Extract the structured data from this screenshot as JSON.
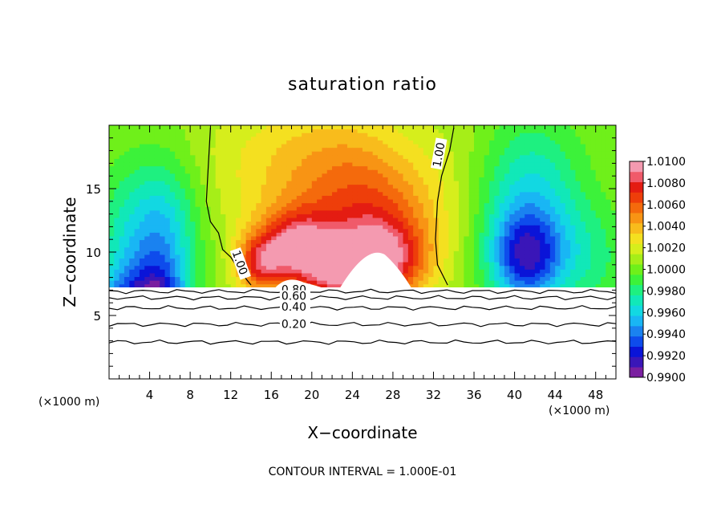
{
  "chart_data": {
    "type": "heatmap",
    "title": "saturation ratio",
    "xlabel": "X−coordinate",
    "ylabel": "Z−coordinate",
    "x_unit_left": "(×1000 m)",
    "x_unit_right": "(×1000 m)",
    "footer": "CONTOUR INTERVAL = 1.000E-01",
    "xlim": [
      0,
      50
    ],
    "ylim": [
      0,
      20
    ],
    "x_ticks": [
      4,
      8,
      12,
      16,
      20,
      24,
      28,
      32,
      36,
      40,
      44,
      48
    ],
    "y_ticks": [
      5,
      10,
      15
    ],
    "colorbar": {
      "min": 0.99,
      "max": 1.01,
      "labels": [
        "1.0100",
        "1.0080",
        "1.0060",
        "1.0040",
        "1.0020",
        "1.0000",
        "0.9980",
        "0.9960",
        "0.9940",
        "0.9920",
        "0.9900"
      ],
      "colors": [
        "#7a1fa0",
        "#3a16b8",
        "#0a14d8",
        "#0e4cec",
        "#1a82f0",
        "#19b6f4",
        "#12d8e2",
        "#11e8b8",
        "#1ef080",
        "#3cf23a",
        "#6ff01a",
        "#a6ee18",
        "#d6ee1c",
        "#f4e020",
        "#f8bc1c",
        "#f89414",
        "#f46a0c",
        "#ee3e0a",
        "#e41c12",
        "#f05a6a",
        "#f49ab0"
      ]
    },
    "field": {
      "description_values": "saturation ratio field sampled on a 50 x 20 grid",
      "x_samples": [
        0,
        2,
        4,
        6,
        8,
        10,
        12,
        14,
        16,
        18,
        20,
        22,
        24,
        26,
        28,
        30,
        32,
        34,
        36,
        38,
        40,
        42,
        44,
        46,
        48,
        50
      ],
      "z_samples": [
        7.2,
        8,
        9,
        10,
        11,
        12,
        13,
        14,
        15,
        16,
        17,
        18,
        19,
        20
      ]
    },
    "contours": [
      {
        "label": "1.00",
        "level": 1.0,
        "x": [
          10,
          9.8,
          9.6,
          10.0,
          10.8,
          11.2,
          12.0,
          13.0,
          14.0
        ],
        "y": [
          19.8,
          17.0,
          14.0,
          12.4,
          11.5,
          10.2,
          9.6,
          8.4,
          7.4
        ]
      },
      {
        "label": "1.00",
        "level": 1.0,
        "x": [
          34.0,
          33.6,
          32.8,
          32.4,
          32.2,
          32.4,
          33.4
        ],
        "y": [
          19.8,
          18.0,
          16.0,
          14.0,
          11.0,
          9.0,
          7.4
        ]
      },
      {
        "label": "0.80",
        "level": 0.8,
        "x": [
          0,
          50
        ],
        "y": [
          6.9,
          6.9
        ]
      },
      {
        "label": "0.60",
        "level": 0.6,
        "x": [
          0,
          50
        ],
        "y": [
          6.4,
          6.4
        ]
      },
      {
        "label": "0.40",
        "level": 0.4,
        "x": [
          0,
          50
        ],
        "y": [
          5.6,
          5.6
        ]
      },
      {
        "label": "0.20",
        "level": 0.2,
        "x": [
          0,
          50
        ],
        "y": [
          4.3,
          4.3
        ]
      },
      {
        "label": "",
        "level": 0.0,
        "x": [
          0,
          50
        ],
        "y": [
          2.9,
          2.9
        ]
      }
    ]
  }
}
